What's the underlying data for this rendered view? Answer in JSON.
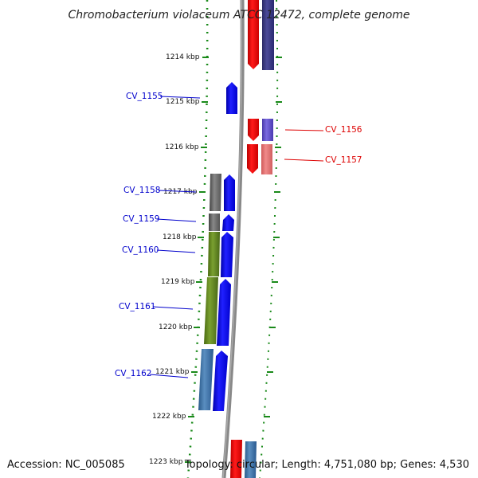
{
  "title": "Chromobacterium violaceum ATCC 12472, complete genome",
  "footer": {
    "accession": "Accession: NC_005085",
    "topology": "Topology: circular; Length: 4,751,080 bp; Genes: 4,530"
  },
  "colors": {
    "backbone": "#888888",
    "tick": "#1a8a1a",
    "forward_gene": "#0000ff",
    "reverse_label": "#dd0000",
    "forward_label": "#0000cc"
  },
  "ticks": [
    "1214 kbp",
    "1215 kbp",
    "1216 kbp",
    "1217 kbp",
    "1218 kbp",
    "1219 kbp",
    "1220 kbp",
    "1221 kbp",
    "1222 kbp",
    "1223 kbp"
  ],
  "labels_left": [
    "CV_1155",
    "CV_1158",
    "CV_1159",
    "CV_1160",
    "CV_1161",
    "CV_1162"
  ],
  "labels_right": [
    "CV_1156",
    "CV_1157"
  ]
}
